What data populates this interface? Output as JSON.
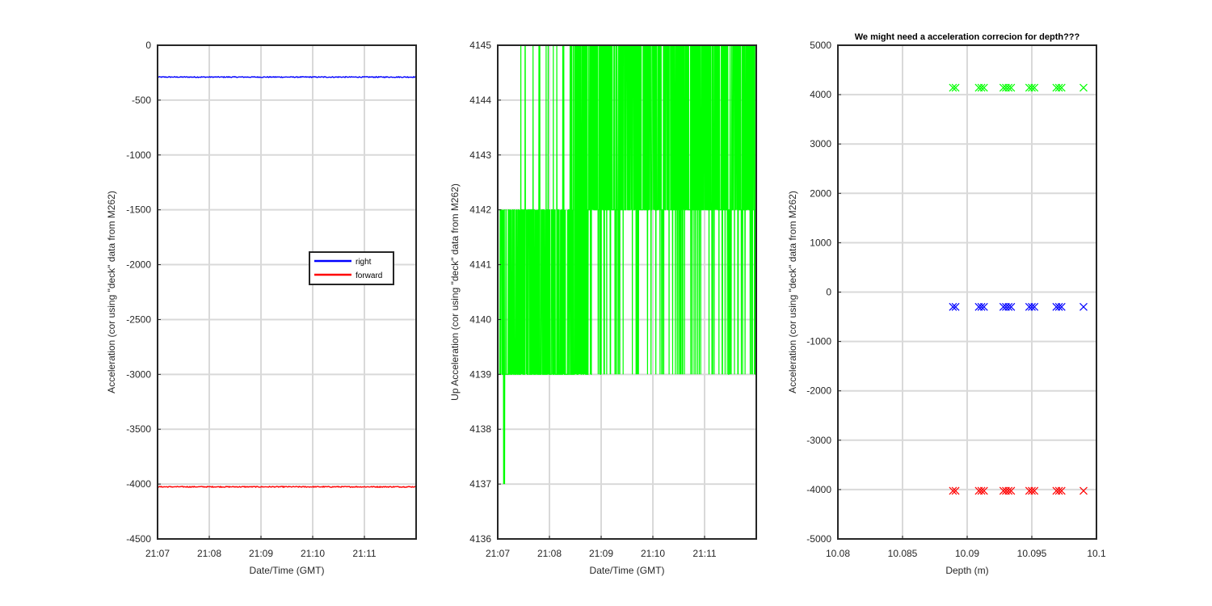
{
  "chart_data": [
    {
      "type": "line",
      "title": "",
      "xlabel": "Date/Time (GMT)",
      "ylabel": "Acceleration (cor using \"deck\" data from M262)",
      "xlim": [
        0,
        5
      ],
      "ylim": [
        -4500,
        0
      ],
      "x_tick_values": [
        0,
        1,
        2,
        3,
        4
      ],
      "x_tick_labels": [
        "21:07",
        "21:08",
        "21:09",
        "21:10",
        "21:11"
      ],
      "y_ticks": [
        0,
        -500,
        -1000,
        -1500,
        -2000,
        -2500,
        -3000,
        -3500,
        -4000,
        -4500
      ],
      "grid": true,
      "legend_position": "center-right",
      "series": [
        {
          "name": "right",
          "color": "#0000ff",
          "level": -290,
          "noise": 8
        },
        {
          "name": "forward",
          "color": "#ff0000",
          "level": -4025,
          "noise": 8
        }
      ]
    },
    {
      "type": "line",
      "title": "",
      "xlabel": "Date/Time (GMT)",
      "ylabel": "Up Acceleration (cor using \"deck\" data from M262)",
      "xlim": [
        0,
        5
      ],
      "ylim": [
        4136,
        4145
      ],
      "x_tick_values": [
        0,
        1,
        2,
        3,
        4
      ],
      "x_tick_labels": [
        "21:07",
        "21:08",
        "21:09",
        "21:10",
        "21:11"
      ],
      "y_ticks": [
        4136,
        4137,
        4138,
        4139,
        4140,
        4141,
        4142,
        4143,
        4144,
        4145
      ],
      "grid": true,
      "series": [
        {
          "color": "#00ff00",
          "levels": [
            4137,
            4139,
            4142,
            4145
          ]
        }
      ]
    },
    {
      "type": "scatter",
      "title": "We might need a acceleration correcion for depth???",
      "xlabel": "Depth (m)",
      "ylabel": "Acceleration (cor using \"deck\" data from M262)",
      "xlim": [
        10.08,
        10.1
      ],
      "ylim": [
        -5000,
        5000
      ],
      "x_ticks": [
        10.08,
        10.085,
        10.09,
        10.095,
        10.1
      ],
      "x_tick_labels": [
        "10.08",
        "10.085",
        "10.09",
        "10.095",
        "10.1"
      ],
      "y_ticks": [
        5000,
        4000,
        3000,
        2000,
        1000,
        0,
        -1000,
        -2000,
        -3000,
        -4000,
        -5000
      ],
      "grid": true,
      "marker": "x",
      "depths": [
        10.0889,
        10.0891,
        10.0909,
        10.0911,
        10.0913,
        10.0928,
        10.093,
        10.0932,
        10.0934,
        10.0948,
        10.095,
        10.0952,
        10.0969,
        10.0971,
        10.0973,
        10.099
      ],
      "series": [
        {
          "color": "#00ff00",
          "value": 4140
        },
        {
          "color": "#0000ff",
          "value": -300
        },
        {
          "color": "#ff0000",
          "value": -4025
        }
      ]
    }
  ]
}
